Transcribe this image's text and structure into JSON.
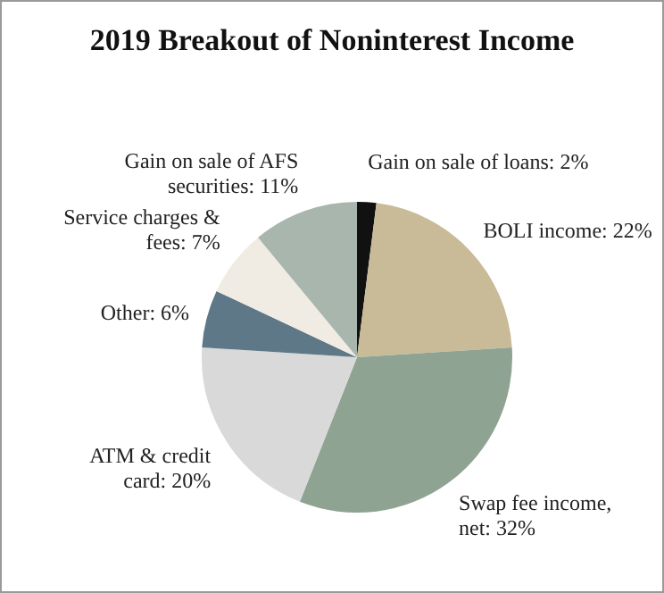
{
  "chart_data": {
    "type": "pie",
    "title": "2019 Breakout of Noninterest Income",
    "categories": [
      "Gain on sale of loans",
      "BOLI income",
      "Swap fee income, net",
      "ATM & credit card",
      "Other",
      "Service charges & fees",
      "Gain on sale of AFS securities"
    ],
    "values": [
      2,
      22,
      32,
      20,
      6,
      7,
      11
    ],
    "value_labels": [
      "2%",
      "22%",
      "32%",
      "20%",
      "6%",
      "7%",
      "11%"
    ],
    "colors": [
      "#111111",
      "#c9bb98",
      "#8fa393",
      "#d9d9d9",
      "#5f7888",
      "#f0ece3",
      "#a9b6ae"
    ],
    "legend": false
  }
}
